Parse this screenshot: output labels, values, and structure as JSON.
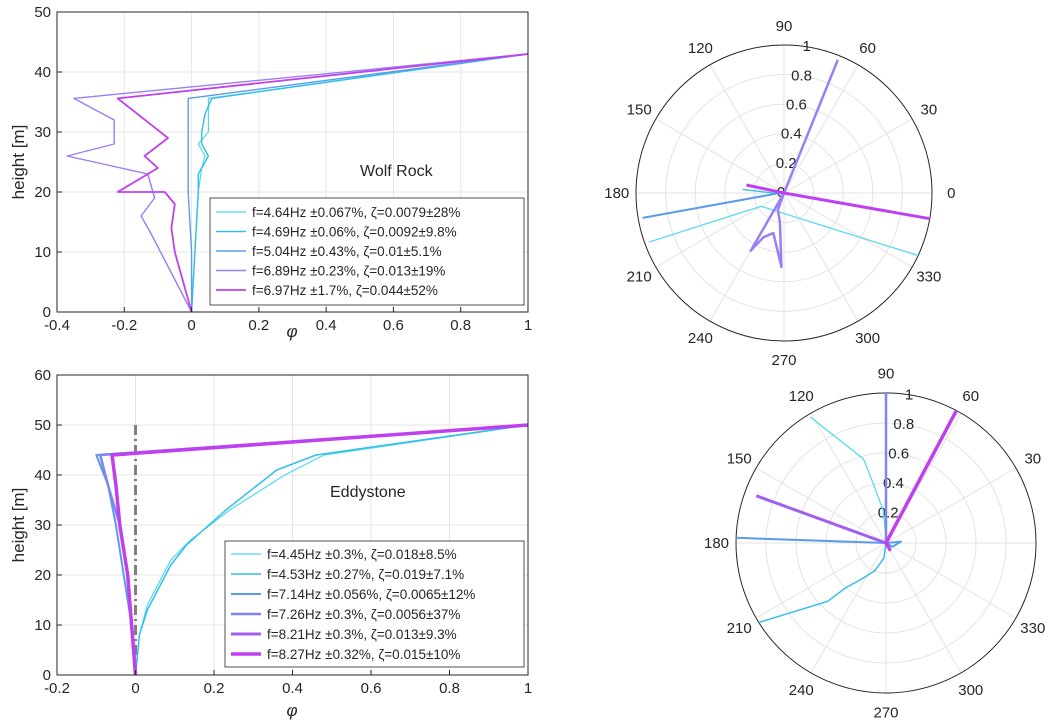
{
  "chart_data": [
    {
      "id": "wolf",
      "type": "line",
      "annotation": "Wolf Rock",
      "xlabel": "φ",
      "ylabel": "height [m]",
      "xlim": [
        -0.4,
        1
      ],
      "ylim": [
        0,
        50
      ],
      "xticks": [
        "-0.4",
        "-0.2",
        "0",
        "0.2",
        "0.4",
        "0.6",
        "0.8",
        "1"
      ],
      "yticks": [
        "0",
        "10",
        "20",
        "30",
        "40",
        "50"
      ],
      "grid": true,
      "legend_position": "bottom-right",
      "series": [
        {
          "name": "f=4.64Hz ±0.067%, ζ=0.0079±28%",
          "color": "#4dd9ef",
          "width": 1.2,
          "points": [
            [
              0,
              0
            ],
            [
              0.01,
              10
            ],
            [
              0.02,
              20
            ],
            [
              0.03,
              24
            ],
            [
              0.04,
              26
            ],
            [
              0.02,
              28
            ],
            [
              0.05,
              30
            ],
            [
              0.05,
              32
            ],
            [
              0.05,
              35.6
            ],
            [
              1,
              43
            ]
          ]
        },
        {
          "name": "f=4.69Hz ±0.06%, ζ=0.0092±9.8%",
          "color": "#33bfe8",
          "width": 1.4,
          "points": [
            [
              0,
              0
            ],
            [
              0.01,
              10
            ],
            [
              0.02,
              20
            ],
            [
              0.02,
              23
            ],
            [
              0.05,
              26
            ],
            [
              0.03,
              28
            ],
            [
              0.03,
              30
            ],
            [
              0.04,
              33
            ],
            [
              0.06,
              35.6
            ],
            [
              1,
              43
            ]
          ]
        },
        {
          "name": "f=5.04Hz ±0.43%, ζ=0.01±5.1%",
          "color": "#5a9bec",
          "width": 1.4,
          "points": [
            [
              0,
              0
            ],
            [
              0,
              10
            ],
            [
              -0.01,
              20
            ],
            [
              -0.01,
              25
            ],
            [
              -0.01,
              30
            ],
            [
              -0.01,
              35.6
            ],
            [
              1,
              43
            ]
          ]
        },
        {
          "name": "f=6.89Hz ±0.23%, ζ=0.013±19%",
          "color": "#9a7ef3",
          "width": 1.4,
          "points": [
            [
              0,
              0
            ],
            [
              -0.12,
              13
            ],
            [
              -0.15,
              16
            ],
            [
              -0.11,
              19
            ],
            [
              -0.13,
              23
            ],
            [
              -0.37,
              26
            ],
            [
              -0.23,
              28
            ],
            [
              -0.23,
              32
            ],
            [
              -0.35,
              35.6
            ],
            [
              1,
              43
            ]
          ]
        },
        {
          "name": "f=6.97Hz ±1.7%, ζ=0.044±52%",
          "color": "#c040ef",
          "width": 1.8,
          "points": [
            [
              0,
              0
            ],
            [
              -0.05,
              10
            ],
            [
              -0.06,
              14
            ],
            [
              -0.05,
              18
            ],
            [
              -0.08,
              20
            ],
            [
              -0.22,
              20
            ],
            [
              -0.1,
              24
            ],
            [
              -0.14,
              26
            ],
            [
              -0.07,
              29
            ],
            [
              -0.22,
              35.6
            ],
            [
              1,
              43
            ]
          ]
        }
      ]
    },
    {
      "id": "eddy",
      "type": "line",
      "annotation": "Eddystone",
      "xlabel": "φ",
      "ylabel": "height [m]",
      "xlim": [
        -0.2,
        1
      ],
      "ylim": [
        0,
        60
      ],
      "xticks": [
        "-0.2",
        "0",
        "0.2",
        "0.4",
        "0.6",
        "0.8",
        "1"
      ],
      "yticks": [
        "0",
        "10",
        "20",
        "30",
        "40",
        "50",
        "60"
      ],
      "grid": true,
      "legend_position": "bottom-right",
      "series": [
        {
          "name": "",
          "color": "#808080",
          "width": 3,
          "dash": "10,4,2,4",
          "points": [
            [
              0,
              0
            ],
            [
              0,
              50
            ]
          ]
        },
        {
          "name": "f=4.45Hz ±0.3%, ζ=0.018±8.5%",
          "color": "#4dd9ef",
          "width": 1.2,
          "points": [
            [
              0,
              0
            ],
            [
              0.01,
              8
            ],
            [
              0.03,
              14
            ],
            [
              0.09,
              23
            ],
            [
              0.14,
              27
            ],
            [
              0.24,
              33
            ],
            [
              0.38,
              40
            ],
            [
              0.48,
              44
            ],
            [
              1,
              50
            ]
          ]
        },
        {
          "name": "f=4.53Hz ±0.27%, ζ=0.019±7.1%",
          "color": "#33bfe8",
          "width": 1.5,
          "points": [
            [
              0,
              0
            ],
            [
              0.01,
              8
            ],
            [
              0.03,
              13
            ],
            [
              0.09,
              22
            ],
            [
              0.13,
              26
            ],
            [
              0.23,
              33
            ],
            [
              0.36,
              41
            ],
            [
              0.46,
              44
            ],
            [
              1,
              50
            ]
          ]
        },
        {
          "name": "f=7.14Hz ±0.056%, ζ=0.0065±12%",
          "color": "#5a9bec",
          "width": 2,
          "points": [
            [
              0,
              0
            ],
            [
              -0.01,
              10
            ],
            [
              -0.03,
              20
            ],
            [
              -0.05,
              30
            ],
            [
              -0.07,
              38
            ],
            [
              -0.1,
              44
            ],
            [
              1,
              50
            ]
          ]
        },
        {
          "name": "f=7.26Hz ±0.3%, ζ=0.0056±37%",
          "color": "#7f86f0",
          "width": 2.5,
          "points": [
            [
              0,
              0
            ],
            [
              -0.01,
              10
            ],
            [
              -0.02,
              20
            ],
            [
              -0.04,
              30
            ],
            [
              -0.07,
              38
            ],
            [
              -0.09,
              44
            ],
            [
              1,
              50
            ]
          ]
        },
        {
          "name": "f=8.21Hz ±0.3%, ζ=0.013±9.3%",
          "color": "#a25ef0",
          "width": 3,
          "points": [
            [
              0,
              0
            ],
            [
              -0.01,
              10
            ],
            [
              -0.02,
              20
            ],
            [
              -0.04,
              30
            ],
            [
              -0.05,
              38
            ],
            [
              -0.06,
              44
            ],
            [
              1,
              50
            ]
          ]
        },
        {
          "name": "f=8.27Hz ±0.32%, ζ=0.015±10%",
          "color": "#c040ef",
          "width": 3.5,
          "points": [
            [
              0,
              0
            ],
            [
              -0.01,
              10
            ],
            [
              -0.02,
              20
            ],
            [
              -0.04,
              30
            ],
            [
              -0.05,
              38
            ],
            [
              -0.06,
              44
            ],
            [
              1,
              50
            ]
          ]
        }
      ]
    },
    {
      "id": "polar-wolf",
      "type": "polar",
      "theta_ticks": [
        "0",
        "30",
        "60",
        "90",
        "120",
        "150",
        "180",
        "210",
        "240",
        "270",
        "300",
        "330"
      ],
      "r_ticks": [
        "0",
        "0.2",
        "0.4",
        "0.6",
        "0.8",
        "1"
      ],
      "rlim": [
        0,
        1
      ],
      "series": [
        {
          "color": "#4dd9ef",
          "width": 1.2,
          "points": [
            [
              200,
              0.97
            ],
            [
              210,
              0.18
            ],
            [
              335,
              1.0
            ]
          ]
        },
        {
          "color": "#33bfe8",
          "width": 1.4,
          "points": [
            [
              175,
              0.28
            ],
            [
              182,
              0.06
            ],
            [
              0,
              0
            ],
            [
              140,
              0.02
            ]
          ]
        },
        {
          "color": "#5a9bec",
          "width": 2,
          "points": [
            [
              190,
              0.97
            ],
            [
              185,
              0.05
            ],
            [
              0,
              0
            ]
          ]
        },
        {
          "color": "#9a7ef3",
          "width": 2.5,
          "points": [
            [
              68,
              0.97
            ],
            [
              0,
              0
            ],
            [
              240,
              0.45
            ],
            [
              245,
              0.33
            ],
            [
              255,
              0.28
            ],
            [
              265,
              0.42
            ],
            [
              268,
              0.5
            ],
            [
              262,
              0.2
            ],
            [
              250,
              0.12
            ],
            [
              0,
              0
            ]
          ]
        },
        {
          "color": "#c040ef",
          "width": 3,
          "points": [
            [
              168,
              0.26
            ],
            [
              0,
              0
            ],
            [
              350,
              1.0
            ]
          ]
        }
      ]
    },
    {
      "id": "polar-eddy",
      "type": "polar",
      "theta_ticks": [
        "0",
        "30",
        "60",
        "90",
        "120",
        "150",
        "180",
        "210",
        "240",
        "270",
        "300",
        "330"
      ],
      "r_ticks": [
        "0.2",
        "0.4",
        "0.6",
        "0.8",
        "1"
      ],
      "rlim": [
        0,
        1
      ],
      "series": [
        {
          "color": "#4dd9ef",
          "width": 1.2,
          "points": [
            [
              121,
              0.98
            ],
            [
              105,
              0.58
            ],
            [
              102,
              0.4
            ],
            [
              95,
              0.22
            ],
            [
              92,
              0.05
            ],
            [
              0,
              0
            ]
          ]
        },
        {
          "color": "#33bfe8",
          "width": 1.5,
          "points": [
            [
              212,
              1.0
            ],
            [
              225,
              0.55
            ],
            [
              228,
              0.4
            ],
            [
              235,
              0.3
            ],
            [
              248,
              0.2
            ],
            [
              262,
              0.1
            ],
            [
              0,
              0
            ]
          ]
        },
        {
          "color": "#5a9bec",
          "width": 2,
          "points": [
            [
              178,
              1.0
            ],
            [
              0,
              0
            ],
            [
              5,
              0.1
            ],
            [
              330,
              0.05
            ],
            [
              0,
              0
            ]
          ]
        },
        {
          "color": "#7f86f0",
          "width": 2.5,
          "points": [
            [
              90,
              1.0
            ],
            [
              0,
              0
            ]
          ]
        },
        {
          "color": "#a25ef0",
          "width": 3,
          "points": [
            [
              160,
              0.92
            ],
            [
              0,
              0
            ]
          ]
        },
        {
          "color": "#c040ef",
          "width": 3.5,
          "points": [
            [
              62,
              1.0
            ],
            [
              0,
              0
            ],
            [
              300,
              0.05
            ],
            [
              0,
              0
            ]
          ]
        }
      ]
    }
  ]
}
